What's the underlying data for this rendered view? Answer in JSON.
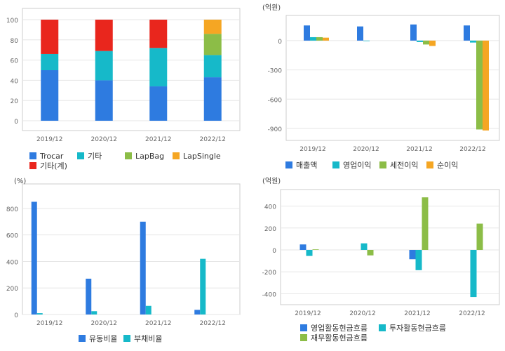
{
  "colors": {
    "blue": "#2e7be0",
    "teal": "#16b9c9",
    "green": "#8cbd47",
    "orange": "#f5a623",
    "red": "#e9261d",
    "axis": "#666666",
    "grid": "#e6e6e6",
    "frame": "#cccccc"
  },
  "chart_data": [
    {
      "id": "composition",
      "type": "bar",
      "stacked": true,
      "title": "",
      "ylabel": "",
      "categories": [
        "2019/12",
        "2020/12",
        "2021/12",
        "2022/12"
      ],
      "ylim": [
        0,
        100
      ],
      "yticks": [
        0,
        20,
        40,
        60,
        80,
        100
      ],
      "series": [
        {
          "name": "Trocar",
          "color": "#2e7be0",
          "values": [
            50,
            40,
            34,
            43
          ]
        },
        {
          "name": "기타",
          "color": "#16b9c9",
          "values": [
            16,
            29,
            38,
            22
          ]
        },
        {
          "name": "LapBag",
          "color": "#8cbd47",
          "values": [
            0,
            0,
            0,
            21
          ]
        },
        {
          "name": "LapSingle",
          "color": "#f5a623",
          "values": [
            0,
            0,
            0,
            14
          ]
        },
        {
          "name": "기타(계)",
          "color": "#e9261d",
          "values": [
            34,
            31,
            28,
            0
          ]
        }
      ],
      "legend": [
        "Trocar",
        "기타",
        "LapBag",
        "LapSingle",
        "기타(계)"
      ]
    },
    {
      "id": "income",
      "type": "bar",
      "stacked": false,
      "unit": "(억원)",
      "categories": [
        "2019/12",
        "2020/12",
        "2021/12",
        "2022/12"
      ],
      "ylim": [
        -950,
        200
      ],
      "yticks": [
        0,
        -300,
        -600,
        -900
      ],
      "series": [
        {
          "name": "매출액",
          "color": "#2e7be0",
          "values": [
            155,
            145,
            165,
            155
          ]
        },
        {
          "name": "영업이익",
          "color": "#16b9c9",
          "values": [
            35,
            -5,
            -15,
            -20
          ]
        },
        {
          "name": "세전이익",
          "color": "#8cbd47",
          "values": [
            35,
            0,
            -40,
            -910
          ]
        },
        {
          "name": "순이익",
          "color": "#f5a623",
          "values": [
            30,
            0,
            -55,
            -920
          ]
        }
      ],
      "legend": [
        "매출액",
        "영업이익",
        "세전이익",
        "순이익"
      ]
    },
    {
      "id": "ratios",
      "type": "bar",
      "stacked": false,
      "unit": "(%)",
      "categories": [
        "2019/12",
        "2020/12",
        "2021/12",
        "2022/12"
      ],
      "ylim": [
        0,
        900
      ],
      "yticks": [
        0,
        200,
        400,
        600,
        800
      ],
      "series": [
        {
          "name": "유동비율",
          "color": "#2e7be0",
          "values": [
            850,
            270,
            700,
            35
          ]
        },
        {
          "name": "부채비율",
          "color": "#16b9c9",
          "values": [
            10,
            25,
            65,
            420
          ]
        }
      ],
      "legend": [
        "유동비율",
        "부채비율"
      ]
    },
    {
      "id": "cashflow",
      "type": "bar",
      "stacked": false,
      "unit": "(억원)",
      "categories": [
        "2019/12",
        "2020/12",
        "2021/12",
        "2022/12"
      ],
      "ylim": [
        -500,
        500
      ],
      "yticks": [
        400,
        200,
        0,
        -200,
        -400
      ],
      "series": [
        {
          "name": "영업활동현금흐름",
          "color": "#2e7be0",
          "values": [
            50,
            0,
            -85,
            0
          ]
        },
        {
          "name": "투자활동현금흐름",
          "color": "#16b9c9",
          "values": [
            -55,
            60,
            -185,
            -430
          ]
        },
        {
          "name": "재무활동현금흐름",
          "color": "#8cbd47",
          "values": [
            5,
            -50,
            480,
            240
          ]
        }
      ],
      "legend": [
        "영업활동현금흐름",
        "투자활동현금흐름",
        "재무활동현금흐름"
      ]
    }
  ]
}
